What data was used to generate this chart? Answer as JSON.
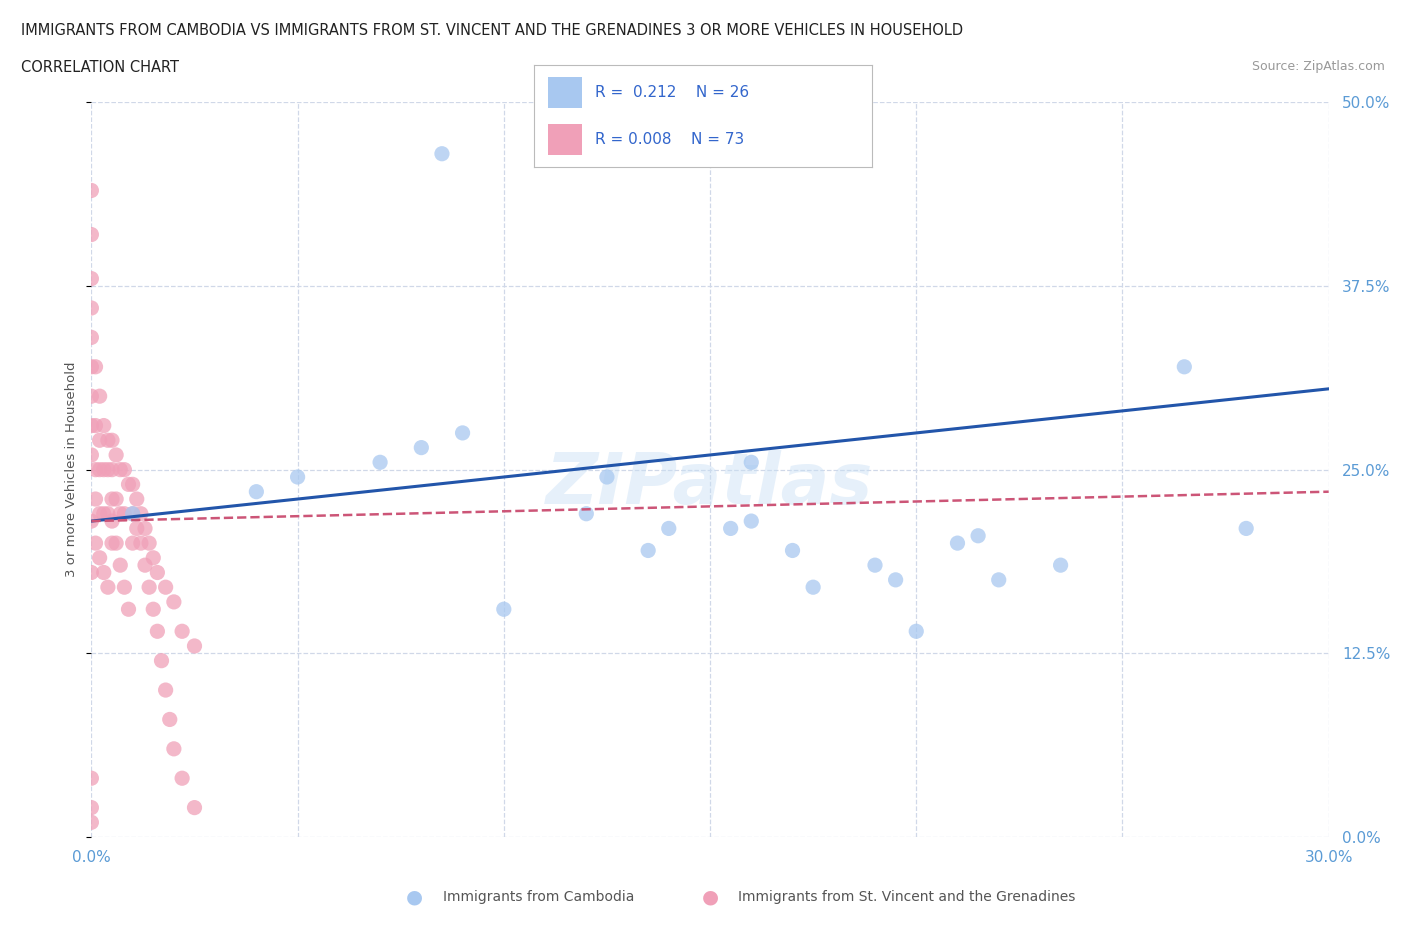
{
  "title_line1": "IMMIGRANTS FROM CAMBODIA VS IMMIGRANTS FROM ST. VINCENT AND THE GRENADINES 3 OR MORE VEHICLES IN HOUSEHOLD",
  "title_line2": "CORRELATION CHART",
  "source": "Source: ZipAtlas.com",
  "watermark": "ZIPatlas",
  "legend_r1": "R =  0.212",
  "legend_n1": "N = 26",
  "legend_r2": "R = 0.008",
  "legend_n2": "N = 73",
  "color_cambodia": "#a8c8f0",
  "color_stv": "#f0a0b8",
  "trendline_cambodia": "#2255aa",
  "trendline_stv": "#cc5577",
  "background": "#ffffff",
  "grid_color": "#d0d8e8",
  "xmin": 0.0,
  "xmax": 0.3,
  "ymin": 0.0,
  "ymax": 0.5,
  "cam_trendline_x0": 0.0,
  "cam_trendline_y0": 0.215,
  "cam_trendline_x1": 0.3,
  "cam_trendline_y1": 0.305,
  "stv_trendline_x0": 0.0,
  "stv_trendline_y0": 0.215,
  "stv_trendline_x1": 0.3,
  "stv_trendline_y1": 0.235,
  "cambodia_x": [
    0.085,
    0.01,
    0.04,
    0.05,
    0.07,
    0.08,
    0.09,
    0.1,
    0.12,
    0.125,
    0.135,
    0.14,
    0.155,
    0.16,
    0.17,
    0.175,
    0.19,
    0.195,
    0.2,
    0.21,
    0.215,
    0.22,
    0.235,
    0.265,
    0.28,
    0.16
  ],
  "cambodia_y": [
    0.465,
    0.22,
    0.235,
    0.245,
    0.255,
    0.265,
    0.275,
    0.155,
    0.22,
    0.245,
    0.195,
    0.21,
    0.21,
    0.215,
    0.195,
    0.17,
    0.185,
    0.175,
    0.14,
    0.2,
    0.205,
    0.175,
    0.185,
    0.32,
    0.21,
    0.255
  ],
  "stv_x": [
    0.0,
    0.0,
    0.0,
    0.0,
    0.0,
    0.0,
    0.0,
    0.0,
    0.0,
    0.0,
    0.0,
    0.0,
    0.001,
    0.001,
    0.001,
    0.001,
    0.002,
    0.002,
    0.002,
    0.002,
    0.003,
    0.003,
    0.003,
    0.004,
    0.004,
    0.004,
    0.005,
    0.005,
    0.005,
    0.005,
    0.006,
    0.006,
    0.007,
    0.007,
    0.008,
    0.008,
    0.009,
    0.01,
    0.01,
    0.011,
    0.012,
    0.013,
    0.014,
    0.015,
    0.016,
    0.018,
    0.02,
    0.022,
    0.025,
    0.0,
    0.0,
    0.001,
    0.002,
    0.003,
    0.004,
    0.005,
    0.006,
    0.007,
    0.008,
    0.009,
    0.01,
    0.011,
    0.012,
    0.013,
    0.014,
    0.015,
    0.016,
    0.017,
    0.018,
    0.019,
    0.02,
    0.022,
    0.025
  ],
  "stv_y": [
    0.44,
    0.41,
    0.38,
    0.36,
    0.34,
    0.32,
    0.3,
    0.28,
    0.26,
    0.04,
    0.02,
    0.01,
    0.32,
    0.28,
    0.25,
    0.23,
    0.3,
    0.27,
    0.25,
    0.22,
    0.28,
    0.25,
    0.22,
    0.27,
    0.25,
    0.22,
    0.27,
    0.25,
    0.23,
    0.2,
    0.26,
    0.23,
    0.25,
    0.22,
    0.25,
    0.22,
    0.24,
    0.24,
    0.2,
    0.23,
    0.22,
    0.21,
    0.2,
    0.19,
    0.18,
    0.17,
    0.16,
    0.14,
    0.13,
    0.215,
    0.18,
    0.2,
    0.19,
    0.18,
    0.17,
    0.215,
    0.2,
    0.185,
    0.17,
    0.155,
    0.22,
    0.21,
    0.2,
    0.185,
    0.17,
    0.155,
    0.14,
    0.12,
    0.1,
    0.08,
    0.06,
    0.04,
    0.02
  ]
}
